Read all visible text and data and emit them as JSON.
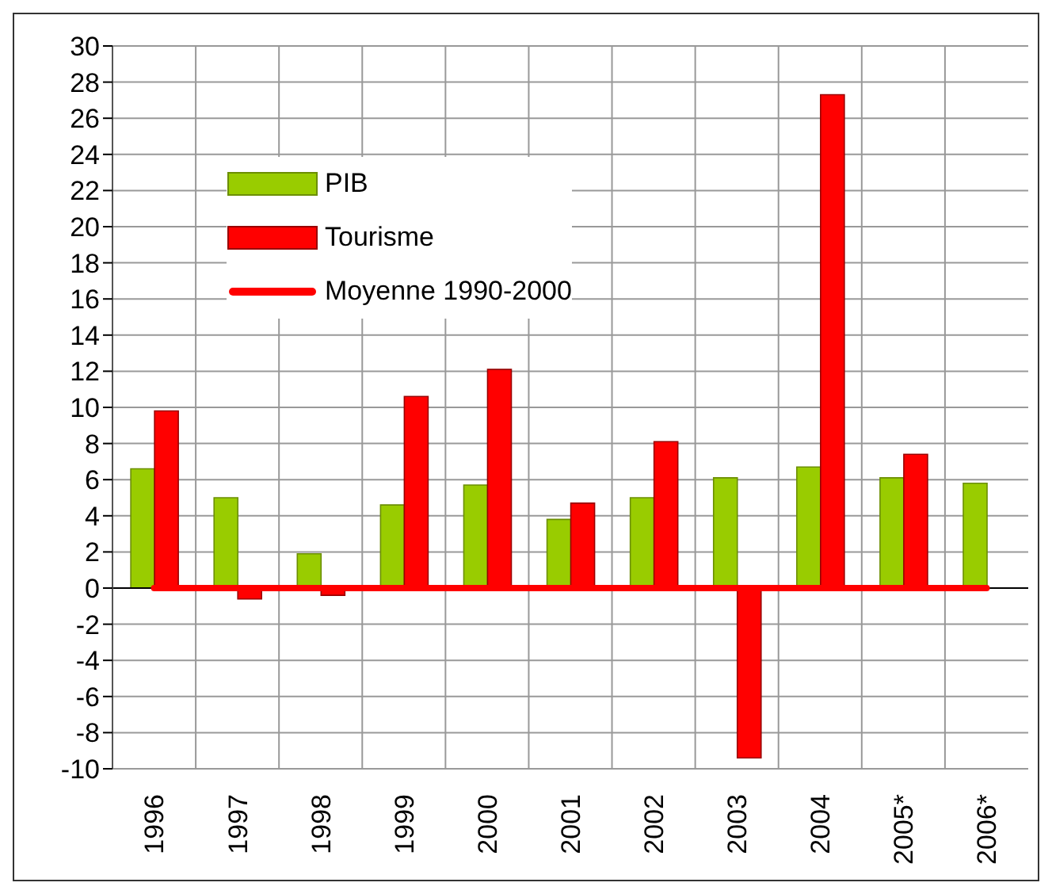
{
  "chart_data": {
    "type": "bar",
    "categories": [
      "1996",
      "1997",
      "1998",
      "1999",
      "2000",
      "2001",
      "2002",
      "2003",
      "2004",
      "2005*",
      "2006*"
    ],
    "series": [
      {
        "name": "PIB",
        "color": "#99cc00",
        "values": [
          6.6,
          5.0,
          1.9,
          4.6,
          5.7,
          3.8,
          5.0,
          6.1,
          6.7,
          6.1,
          5.8
        ]
      },
      {
        "name": "Tourisme",
        "color": "#ff0000",
        "values": [
          9.8,
          -0.6,
          -0.4,
          10.6,
          12.1,
          4.7,
          8.1,
          -9.4,
          27.3,
          7.4,
          null
        ]
      },
      {
        "name": "Moyenne 1990-2000",
        "type": "line",
        "color": "#ff0000",
        "values": [
          0,
          0,
          0,
          0,
          0,
          0,
          0,
          0,
          0,
          0,
          0
        ]
      }
    ],
    "ylim": [
      -10,
      30
    ],
    "yticks": [
      -10,
      -8,
      -6,
      -4,
      -2,
      0,
      2,
      4,
      6,
      8,
      10,
      12,
      14,
      16,
      18,
      20,
      22,
      24,
      26,
      28,
      30
    ],
    "grid": true,
    "legend": "top left",
    "marker": "none"
  }
}
